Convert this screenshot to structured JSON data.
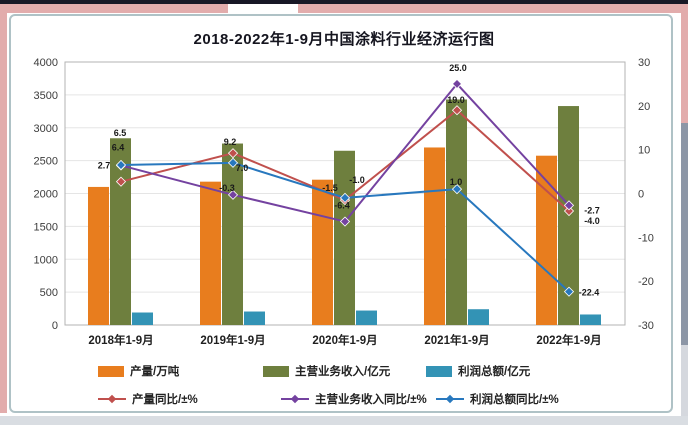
{
  "decor": {
    "top_bar_color": "#181826",
    "ribbon_color": "#e2acac",
    "right_gray_color": "#8c96a6",
    "right_light_color": "#d5d8de",
    "bottom_strip_color": "#d9dde2",
    "panel_border_color": "#afc2c6"
  },
  "chart_data": {
    "type": "combo-grouped-bar-and-line",
    "title": "2018-2022年1-9月中国涂料行业经济运行图",
    "categories": [
      "2018年1-9月",
      "2019年1-9月",
      "2020年1-9月",
      "2021年1-9月",
      "2022年1-9月"
    ],
    "left_axis": {
      "min": 0,
      "max": 4000,
      "step": 500,
      "ticks": [
        0,
        500,
        1000,
        1500,
        2000,
        2500,
        3000,
        3500,
        4000
      ]
    },
    "right_axis": {
      "min": -30,
      "max": 30,
      "step": 10,
      "ticks": [
        -30,
        -20,
        -10,
        0,
        10,
        20,
        30
      ]
    },
    "grid": true,
    "legend_position": "bottom",
    "bar_series": [
      {
        "name": "产量/万吨",
        "color": "#e87d1e",
        "values": [
          2100,
          2180,
          2210,
          2700,
          2575
        ]
      },
      {
        "name": "主营业务收入/亿元",
        "color": "#6e7f3e",
        "values": [
          2840,
          2760,
          2650,
          3430,
          3330
        ]
      },
      {
        "name": "利润总额/亿元",
        "color": "#3393b5",
        "values": [
          190,
          205,
          220,
          240,
          160
        ]
      }
    ],
    "line_series": [
      {
        "name": "产量同比/±%",
        "color": "#c0504d",
        "values": [
          2.7,
          9.2,
          -1.5,
          19.0,
          -4.0
        ]
      },
      {
        "name": "主营业务收入同比/±%",
        "color": "#7442a0",
        "values": [
          6.4,
          -0.3,
          -6.4,
          25.0,
          -2.7
        ]
      },
      {
        "name": "利润总额同比/±%",
        "color": "#2878be",
        "values": [
          6.5,
          7.0,
          -1.0,
          1.0,
          -22.4
        ]
      }
    ]
  }
}
